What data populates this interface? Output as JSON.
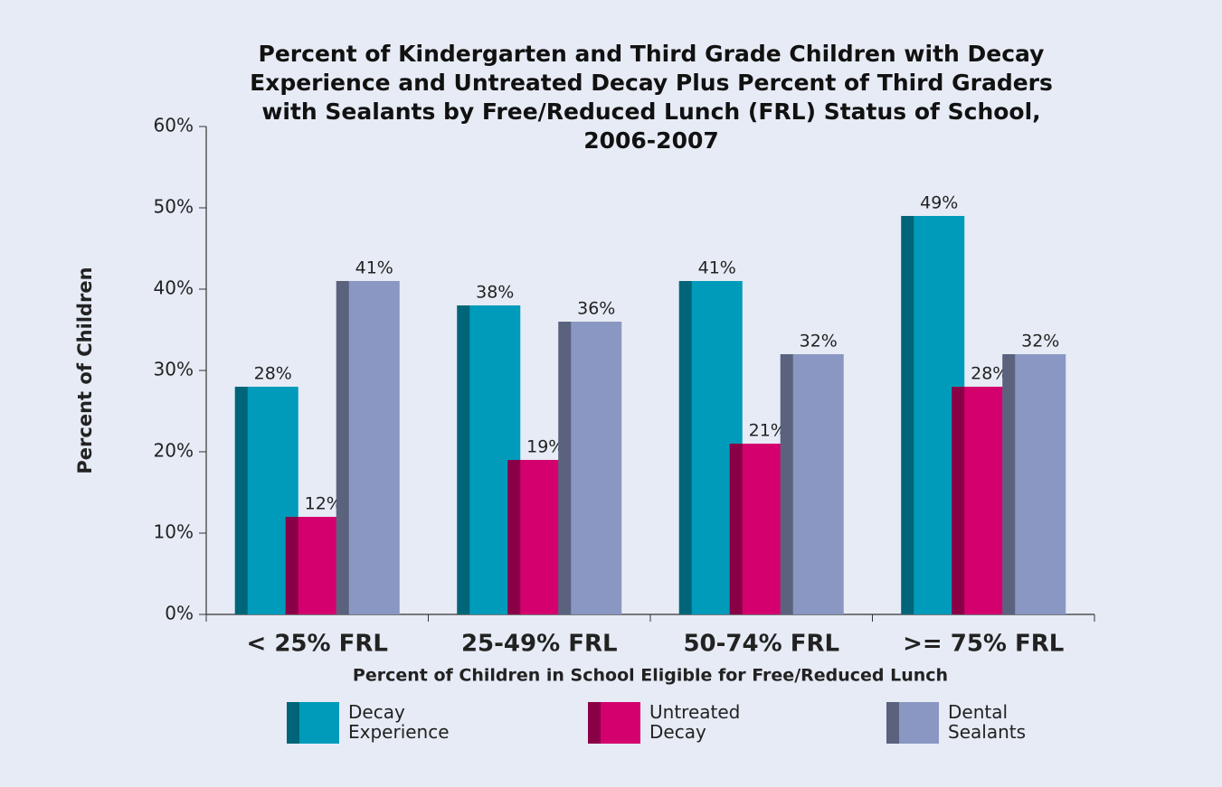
{
  "chart_data": {
    "type": "bar",
    "title": "Percent of Kindergarten and Third Grade Children with Decay Experience and Untreated Decay Plus Percent of Third Graders with Sealants by Free/Reduced Lunch (FRL) Status of School, 2006-2007",
    "x_label": "Percent of Children in School Eligible for Free/Reduced Lunch",
    "y_label": "Percent of Children",
    "categories": [
      "< 25% FRL",
      "25-49% FRL",
      "50-74% FRL",
      ">= 75% FRL"
    ],
    "series": [
      {
        "name": "Decay Experience",
        "color": "#009bbb",
        "values": [
          28,
          38,
          41,
          49
        ],
        "value_labels": [
          "28%",
          "38%",
          "41%",
          "49%"
        ]
      },
      {
        "name": "Untreated Decay",
        "color": "#d4006e",
        "values": [
          12,
          19,
          21,
          28
        ],
        "value_labels": [
          "12%",
          "19%",
          "21%",
          "28%"
        ]
      },
      {
        "name": "Dental Sealants",
        "color": "#8a97c2",
        "values": [
          41,
          36,
          32,
          32
        ],
        "value_labels": [
          "41%",
          "36%",
          "32%",
          "32%"
        ]
      }
    ],
    "ylim": [
      0,
      60
    ],
    "yticks": [
      {
        "value": 0,
        "label": "0%"
      },
      {
        "value": 10,
        "label": "10%"
      },
      {
        "value": 20,
        "label": "20%"
      },
      {
        "value": 30,
        "label": "30%"
      },
      {
        "value": 40,
        "label": "40%"
      },
      {
        "value": 50,
        "label": "50%"
      },
      {
        "value": 60,
        "label": "60%"
      }
    ],
    "legend": "bottom"
  }
}
